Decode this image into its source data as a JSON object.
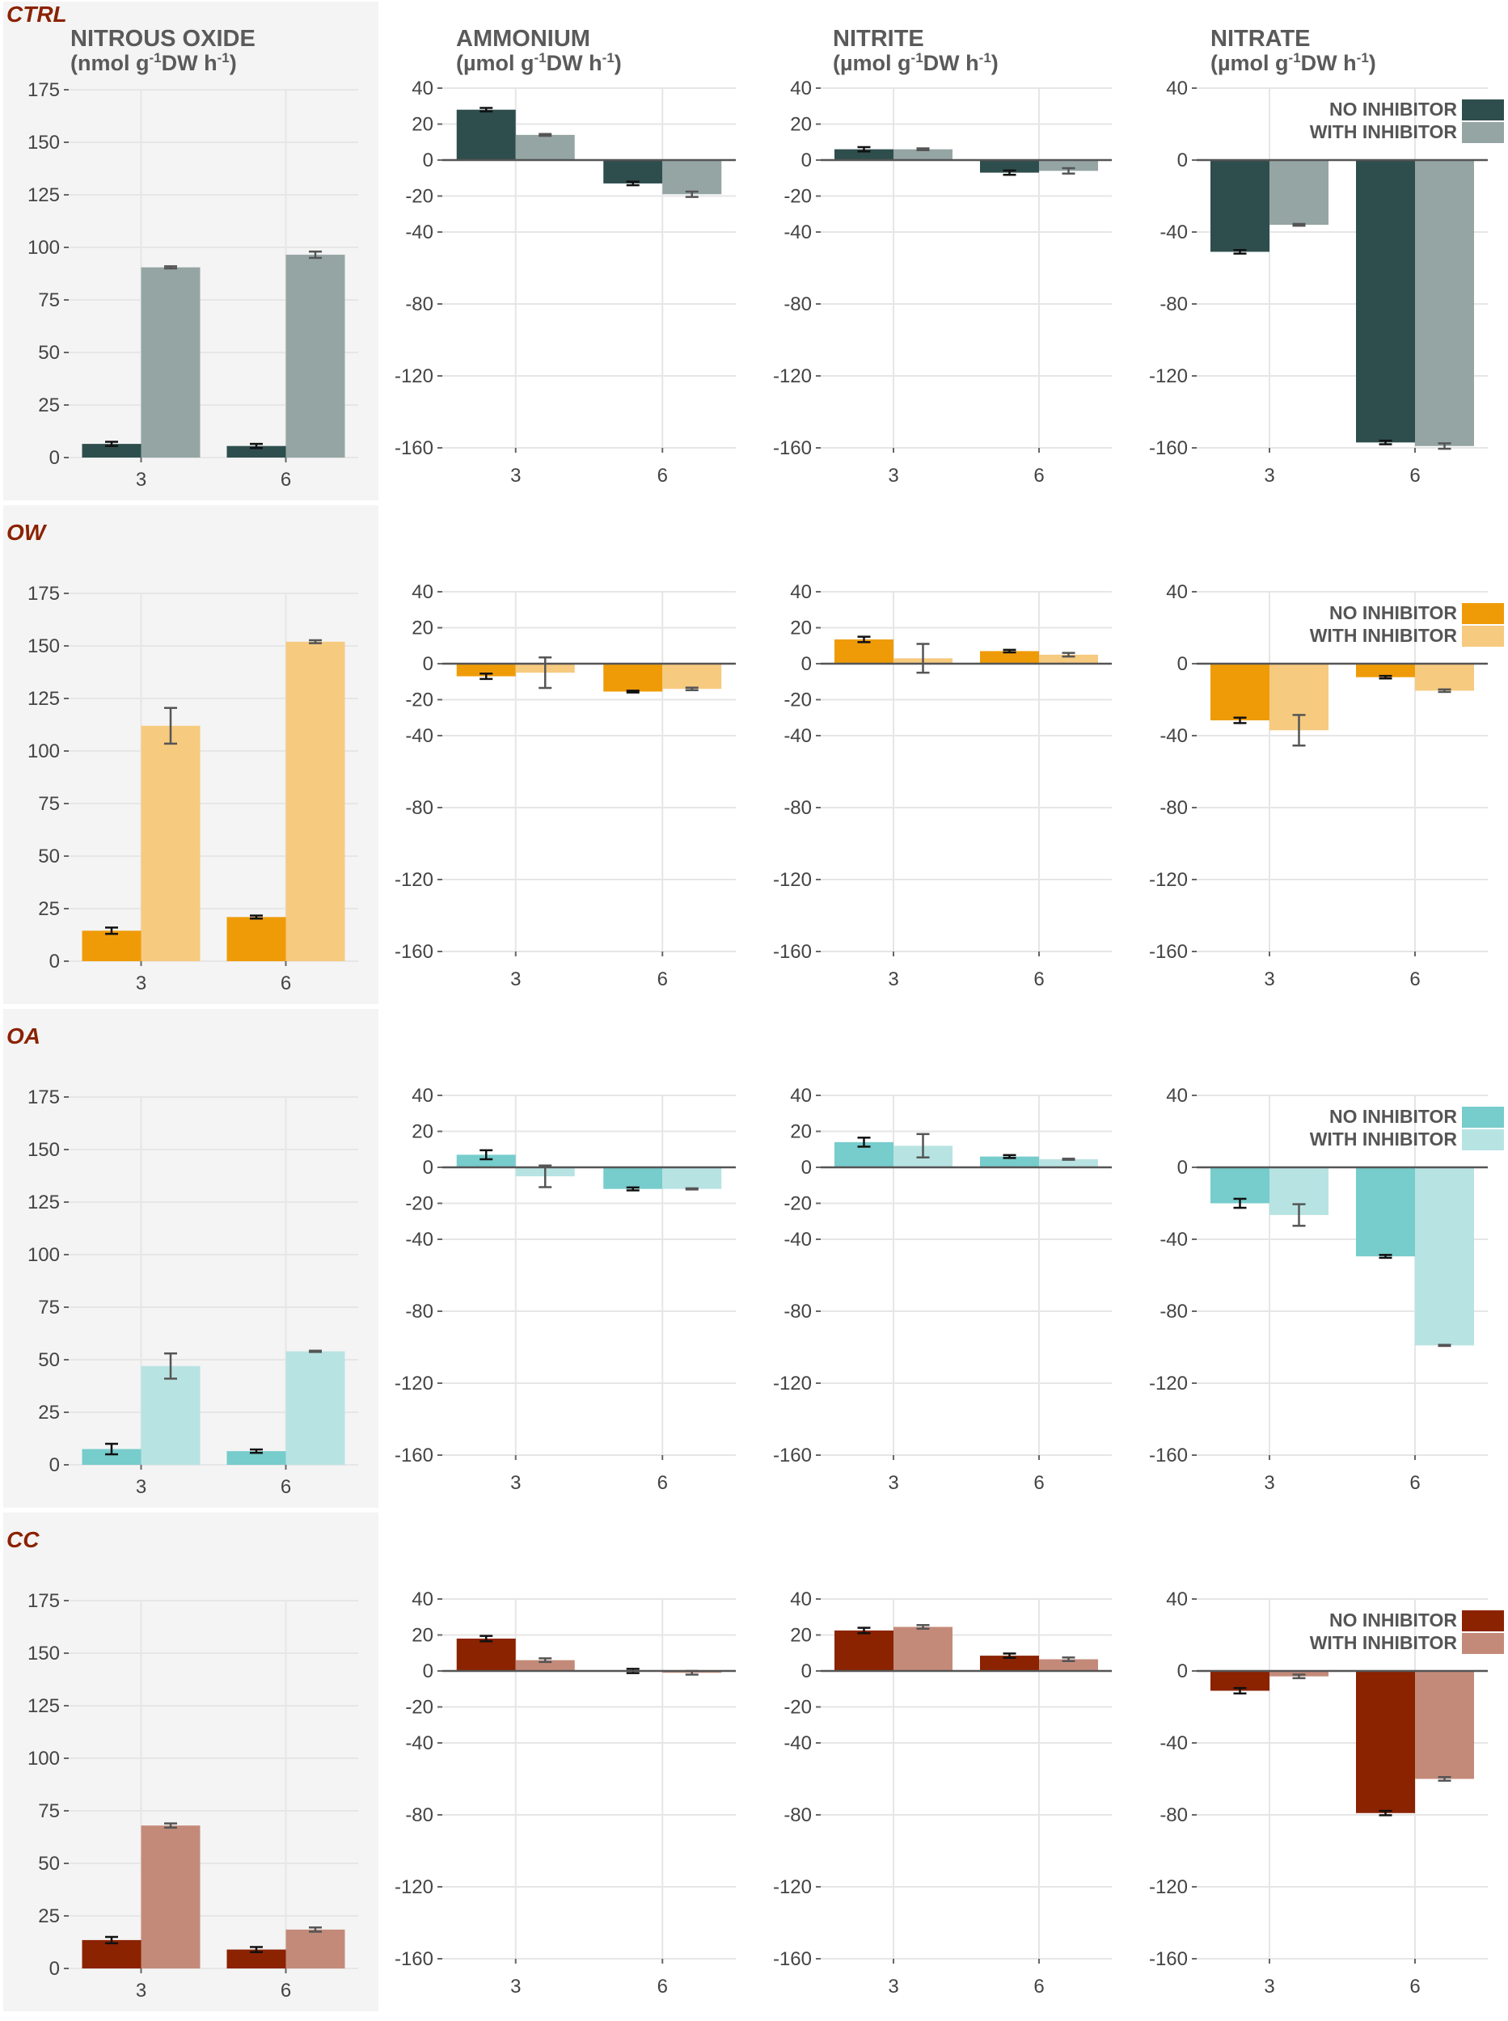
{
  "colors": {
    "grid": "#e6e6e6",
    "axis": "#555555",
    "text": "#444444",
    "row_label": "#8b2200"
  },
  "column_titles": [
    {
      "name": "NITROUS OXIDE",
      "unit_prefix": "(nmol g",
      "unit_sup1": "-1",
      "unit_mid": "DW h",
      "unit_sup2": "-1",
      "unit_suffix": ")"
    },
    {
      "name": "AMMONIUM",
      "unit_prefix": "(µmol g",
      "unit_sup1": "-1",
      "unit_mid": "DW h",
      "unit_sup2": "-1",
      "unit_suffix": ")"
    },
    {
      "name": "NITRITE",
      "unit_prefix": "(µmol g",
      "unit_sup1": "-1",
      "unit_mid": "DW h",
      "unit_sup2": "-1",
      "unit_suffix": ")"
    },
    {
      "name": "NITRATE",
      "unit_prefix": "(µmol g",
      "unit_sup1": "-1",
      "unit_mid": "DW h",
      "unit_sup2": "-1",
      "unit_suffix": ")"
    }
  ],
  "legend": {
    "no_inhibitor": "NO INHIBITOR",
    "with_inhibitor": "WITH INHIBITOR"
  },
  "chart_data": [
    {
      "type": "bar",
      "title": "CTRL",
      "colors": {
        "no_inhibitor": "#2e4e4d",
        "with_inhibitor": "#95a5a4",
        "err_with": "#555555"
      },
      "categories": [
        "3",
        "6"
      ],
      "panels": [
        {
          "variable": "NITROUS OXIDE",
          "ylim": [
            0,
            175
          ],
          "ticks": [
            0,
            25,
            50,
            75,
            100,
            125,
            150,
            175
          ],
          "series": [
            {
              "name": "NO INHIBITOR",
              "values": [
                6.5,
                5.5
              ],
              "errors": [
                1.0,
                1.0
              ]
            },
            {
              "name": "WITH INHIBITOR",
              "values": [
                90.5,
                96.5
              ],
              "errors": [
                0.5,
                1.5
              ]
            }
          ]
        },
        {
          "variable": "AMMONIUM",
          "ylim": [
            -160,
            40
          ],
          "ticks": [
            40,
            20,
            0,
            -20,
            -40,
            -80,
            -120,
            -160
          ],
          "series": [
            {
              "name": "NO INHIBITOR",
              "values": [
                28,
                -13
              ],
              "errors": [
                1.0,
                1.0
              ]
            },
            {
              "name": "WITH INHIBITOR",
              "values": [
                14,
                -19
              ],
              "errors": [
                0.5,
                1.5
              ]
            }
          ]
        },
        {
          "variable": "NITRITE",
          "ylim": [
            -160,
            40
          ],
          "ticks": [
            40,
            20,
            0,
            -20,
            -40,
            -80,
            -120,
            -160
          ],
          "series": [
            {
              "name": "NO INHIBITOR",
              "values": [
                6,
                -7
              ],
              "errors": [
                1.2,
                1.2
              ]
            },
            {
              "name": "WITH INHIBITOR",
              "values": [
                6,
                -6
              ],
              "errors": [
                0.5,
                1.5
              ]
            }
          ]
        },
        {
          "variable": "NITRATE",
          "ylim": [
            -160,
            40
          ],
          "ticks": [
            40,
            0,
            -40,
            -80,
            -120,
            -160
          ],
          "legend": true,
          "series": [
            {
              "name": "NO INHIBITOR",
              "values": [
                -51,
                -157
              ],
              "errors": [
                1.0,
                1.0
              ]
            },
            {
              "name": "WITH INHIBITOR",
              "values": [
                -36,
                -159
              ],
              "errors": [
                0.5,
                1.5
              ]
            }
          ]
        }
      ]
    },
    {
      "type": "bar",
      "title": "OW",
      "colors": {
        "no_inhibitor": "#ef9b08",
        "with_inhibitor": "#f6ca7f",
        "err_with": "#555555"
      },
      "categories": [
        "3",
        "6"
      ],
      "panels": [
        {
          "variable": "NITROUS OXIDE",
          "ylim": [
            0,
            175
          ],
          "ticks": [
            0,
            25,
            50,
            75,
            100,
            125,
            150,
            175
          ],
          "series": [
            {
              "name": "NO INHIBITOR",
              "values": [
                14.5,
                21
              ],
              "errors": [
                1.5,
                0.7
              ]
            },
            {
              "name": "WITH INHIBITOR",
              "values": [
                112,
                152
              ],
              "errors": [
                8.5,
                0.7
              ]
            }
          ]
        },
        {
          "variable": "AMMONIUM",
          "ylim": [
            -160,
            40
          ],
          "ticks": [
            40,
            20,
            0,
            -20,
            -40,
            -80,
            -120,
            -160
          ],
          "series": [
            {
              "name": "NO INHIBITOR",
              "values": [
                -7,
                -15.5
              ],
              "errors": [
                1.5,
                0.5
              ]
            },
            {
              "name": "WITH INHIBITOR",
              "values": [
                -5,
                -14
              ],
              "errors": [
                8.5,
                0.7
              ]
            }
          ]
        },
        {
          "variable": "NITRITE",
          "ylim": [
            -160,
            40
          ],
          "ticks": [
            40,
            20,
            0,
            -20,
            -40,
            -80,
            -120,
            -160
          ],
          "series": [
            {
              "name": "NO INHIBITOR",
              "values": [
                13.5,
                7
              ],
              "errors": [
                1.5,
                0.7
              ]
            },
            {
              "name": "WITH INHIBITOR",
              "values": [
                3,
                5
              ],
              "errors": [
                8,
                1.0
              ]
            }
          ]
        },
        {
          "variable": "NITRATE",
          "ylim": [
            -160,
            40
          ],
          "ticks": [
            40,
            0,
            -40,
            -80,
            -120,
            -160
          ],
          "legend": true,
          "series": [
            {
              "name": "NO INHIBITOR",
              "values": [
                -31.5,
                -7.5
              ],
              "errors": [
                1.5,
                0.7
              ]
            },
            {
              "name": "WITH INHIBITOR",
              "values": [
                -37,
                -15
              ],
              "errors": [
                8.5,
                0.7
              ]
            }
          ]
        }
      ]
    },
    {
      "type": "bar",
      "title": "OA",
      "colors": {
        "no_inhibitor": "#77cccc",
        "with_inhibitor": "#b8e3e3",
        "err_with": "#555555"
      },
      "categories": [
        "3",
        "6"
      ],
      "panels": [
        {
          "variable": "NITROUS OXIDE",
          "ylim": [
            0,
            175
          ],
          "ticks": [
            0,
            25,
            50,
            75,
            100,
            125,
            150,
            175
          ],
          "series": [
            {
              "name": "NO INHIBITOR",
              "values": [
                7.5,
                6.5
              ],
              "errors": [
                2.5,
                0.8
              ]
            },
            {
              "name": "WITH INHIBITOR",
              "values": [
                47,
                54
              ],
              "errors": [
                6,
                0.3
              ]
            }
          ]
        },
        {
          "variable": "AMMONIUM",
          "ylim": [
            -160,
            40
          ],
          "ticks": [
            40,
            20,
            0,
            -20,
            -40,
            -80,
            -120,
            -160
          ],
          "series": [
            {
              "name": "NO INHIBITOR",
              "values": [
                7,
                -12
              ],
              "errors": [
                2.5,
                0.8
              ]
            },
            {
              "name": "WITH INHIBITOR",
              "values": [
                -5,
                -12
              ],
              "errors": [
                6,
                0.3
              ]
            }
          ]
        },
        {
          "variable": "NITRITE",
          "ylim": [
            -160,
            40
          ],
          "ticks": [
            40,
            20,
            0,
            -20,
            -40,
            -80,
            -120,
            -160
          ],
          "series": [
            {
              "name": "NO INHIBITOR",
              "values": [
                14,
                6
              ],
              "errors": [
                2.5,
                0.8
              ]
            },
            {
              "name": "WITH INHIBITOR",
              "values": [
                12,
                4.5
              ],
              "errors": [
                6.5,
                0.3
              ]
            }
          ]
        },
        {
          "variable": "NITRATE",
          "ylim": [
            -160,
            40
          ],
          "ticks": [
            40,
            0,
            -40,
            -80,
            -120,
            -160
          ],
          "legend": true,
          "series": [
            {
              "name": "NO INHIBITOR",
              "values": [
                -20,
                -49.5
              ],
              "errors": [
                2.5,
                0.8
              ]
            },
            {
              "name": "WITH INHIBITOR",
              "values": [
                -26.5,
                -99
              ],
              "errors": [
                6,
                0.3
              ]
            }
          ]
        }
      ]
    },
    {
      "type": "bar",
      "title": "CC",
      "colors": {
        "no_inhibitor": "#8b2200",
        "with_inhibitor": "#c48a79",
        "err_with": "#555555"
      },
      "categories": [
        "3",
        "6"
      ],
      "panels": [
        {
          "variable": "NITROUS OXIDE",
          "ylim": [
            0,
            175
          ],
          "ticks": [
            0,
            25,
            50,
            75,
            100,
            125,
            150,
            175
          ],
          "series": [
            {
              "name": "NO INHIBITOR",
              "values": [
                13.5,
                9
              ],
              "errors": [
                1.5,
                1.2
              ]
            },
            {
              "name": "WITH INHIBITOR",
              "values": [
                68,
                18.5
              ],
              "errors": [
                1.0,
                1.0
              ]
            }
          ]
        },
        {
          "variable": "AMMONIUM",
          "ylim": [
            -160,
            40
          ],
          "ticks": [
            40,
            20,
            0,
            -20,
            -40,
            -80,
            -120,
            -160
          ],
          "series": [
            {
              "name": "NO INHIBITOR",
              "values": [
                18,
                0
              ],
              "errors": [
                1.5,
                1.2
              ]
            },
            {
              "name": "WITH INHIBITOR",
              "values": [
                6,
                -1
              ],
              "errors": [
                1.0,
                1.0
              ]
            }
          ]
        },
        {
          "variable": "NITRITE",
          "ylim": [
            -160,
            40
          ],
          "ticks": [
            40,
            20,
            0,
            -20,
            -40,
            -80,
            -120,
            -160
          ],
          "series": [
            {
              "name": "NO INHIBITOR",
              "values": [
                22.5,
                8.5
              ],
              "errors": [
                1.5,
                1.2
              ]
            },
            {
              "name": "WITH INHIBITOR",
              "values": [
                24.5,
                6.5
              ],
              "errors": [
                1.0,
                1.0
              ]
            }
          ]
        },
        {
          "variable": "NITRATE",
          "ylim": [
            -160,
            40
          ],
          "ticks": [
            40,
            0,
            -40,
            -80,
            -120,
            -160
          ],
          "legend": true,
          "series": [
            {
              "name": "NO INHIBITOR",
              "values": [
                -11,
                -79
              ],
              "errors": [
                1.5,
                1.2
              ]
            },
            {
              "name": "WITH INHIBITOR",
              "values": [
                -3,
                -60
              ],
              "errors": [
                1.0,
                1.0
              ]
            }
          ]
        }
      ]
    }
  ]
}
